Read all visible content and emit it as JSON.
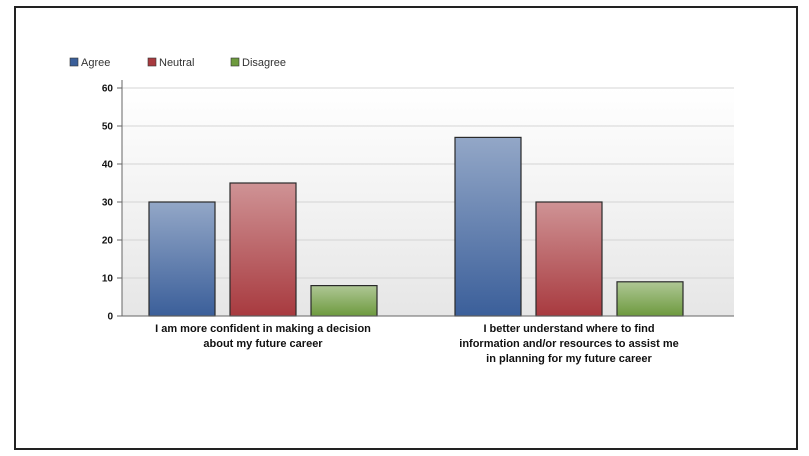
{
  "chart_data": {
    "type": "bar",
    "title": "",
    "xlabel": "",
    "ylabel": "",
    "ylim": [
      0,
      60
    ],
    "yticks": [
      0,
      10,
      20,
      30,
      40,
      50,
      60
    ],
    "grid": true,
    "legend_position": "top-left",
    "categories": [
      "I am more confident in making a decision about my future career",
      "I better understand where to find information and/or resources to assist me in planning for my future career"
    ],
    "category_lines": [
      [
        "I am more confident in making a decision",
        "about my future career"
      ],
      [
        "I better understand where to find",
        "information and/or resources to assist me",
        "in planning for my future career"
      ]
    ],
    "series": [
      {
        "name": "Agree",
        "values": [
          30,
          47
        ],
        "color": "#3b5f9a"
      },
      {
        "name": "Neutral",
        "values": [
          35,
          30
        ],
        "color": "#a83a3f"
      },
      {
        "name": "Disagree",
        "values": [
          8,
          9
        ],
        "color": "#6d9a3e"
      }
    ]
  }
}
